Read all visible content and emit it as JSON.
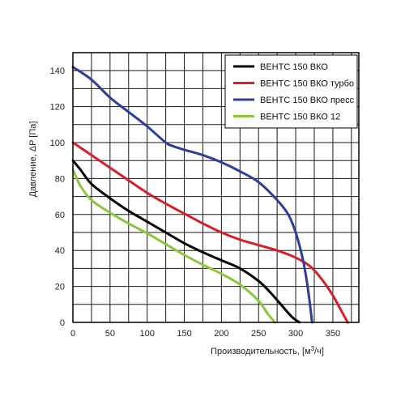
{
  "chart_data": {
    "type": "line",
    "title": "",
    "xlabel": "Производительность, [м",
    "xlabel_sup": "3",
    "xlabel_tail": "/ч]",
    "ylabel": "Давление, ΔP [Па]",
    "xlim": [
      0,
      385
    ],
    "ylim": [
      0,
      150
    ],
    "x_ticks": [
      0,
      50,
      100,
      150,
      200,
      250,
      300,
      350
    ],
    "y_ticks": [
      0,
      20,
      40,
      60,
      80,
      100,
      120,
      140
    ],
    "grid": true,
    "legend_position": "top-right",
    "series": [
      {
        "name": "ВЕНТС 150 ВКО",
        "color": "#000000",
        "x": [
          0,
          10,
          25,
          50,
          75,
          100,
          125,
          150,
          175,
          200,
          225,
          250,
          265,
          280,
          295,
          305
        ],
        "y": [
          90,
          85,
          77,
          69,
          62,
          56,
          50,
          44,
          39,
          34.5,
          30,
          23,
          17,
          10,
          3,
          0
        ]
      },
      {
        "name": "ВЕНТС 150 ВКО турбо",
        "color": "#d42027",
        "x": [
          0,
          25,
          50,
          75,
          100,
          125,
          150,
          175,
          200,
          225,
          250,
          275,
          300,
          320,
          335,
          350,
          362,
          370
        ],
        "y": [
          100,
          93,
          86,
          79,
          72,
          66,
          60.5,
          55,
          50,
          46,
          43,
          40,
          36,
          31,
          24,
          15,
          6,
          0
        ]
      },
      {
        "name": "ВЕНТС 150 ВКО пресс",
        "color": "#2e3d97",
        "x": [
          0,
          25,
          50,
          75,
          100,
          125,
          135,
          150,
          175,
          200,
          225,
          250,
          275,
          290,
          300,
          308,
          313,
          318,
          322
        ],
        "y": [
          142,
          135,
          125,
          117,
          109,
          100,
          98,
          96,
          93,
          89,
          84,
          78,
          68,
          60,
          50,
          38,
          28,
          14,
          0
        ]
      },
      {
        "name": "ВЕНТС 150 ВКО 12",
        "color": "#8cc63f",
        "x": [
          0,
          10,
          25,
          50,
          75,
          100,
          125,
          150,
          175,
          200,
          225,
          250,
          262,
          272
        ],
        "y": [
          85,
          76,
          68,
          61,
          55,
          49.5,
          43.5,
          37.5,
          32,
          27,
          21,
          12,
          5,
          0
        ]
      }
    ]
  }
}
